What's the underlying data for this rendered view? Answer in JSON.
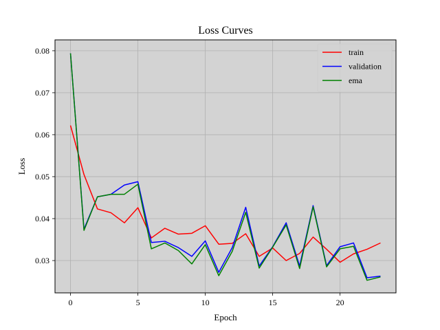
{
  "chart_data": {
    "type": "line",
    "title": "Loss Curves",
    "xlabel": "Epoch",
    "ylabel": "Loss",
    "xlim": [
      -1.15,
      24.15
    ],
    "ylim": [
      0.0223,
      0.0826
    ],
    "xticks": [
      0,
      5,
      10,
      15,
      20
    ],
    "yticks": [
      0.03,
      0.04,
      0.05,
      0.06,
      0.07,
      0.08
    ],
    "ytick_labels": [
      "0.03",
      "0.04",
      "0.05",
      "0.06",
      "0.07",
      "0.08"
    ],
    "grid": true,
    "plot_background": "#d3d3d3",
    "grid_color": "#b0b0b0",
    "legend_position": "top-right",
    "x": [
      0,
      1,
      2,
      3,
      4,
      5,
      6,
      7,
      8,
      9,
      10,
      11,
      12,
      13,
      14,
      15,
      16,
      17,
      18,
      19,
      20,
      21,
      22,
      23
    ],
    "series": [
      {
        "name": "train",
        "color": "#ff0000",
        "values": [
          0.0622,
          0.0505,
          0.0423,
          0.0414,
          0.039,
          0.0426,
          0.0354,
          0.0377,
          0.0363,
          0.0365,
          0.0383,
          0.0339,
          0.0341,
          0.0364,
          0.031,
          0.033,
          0.03,
          0.0317,
          0.0356,
          0.0327,
          0.0296,
          0.0316,
          0.0327,
          0.0342
        ]
      },
      {
        "name": "validation",
        "color": "#0000ff",
        "values": [
          0.0794,
          0.0375,
          0.0452,
          0.0458,
          0.048,
          0.0488,
          0.0343,
          0.0346,
          0.0331,
          0.031,
          0.0347,
          0.0272,
          0.0331,
          0.0427,
          0.0287,
          0.0333,
          0.039,
          0.0287,
          0.0431,
          0.0288,
          0.0333,
          0.0342,
          0.0259,
          0.0263
        ]
      },
      {
        "name": "ema",
        "color": "#008000",
        "values": [
          0.0794,
          0.0372,
          0.0452,
          0.0458,
          0.0458,
          0.0482,
          0.0328,
          0.0342,
          0.0324,
          0.0292,
          0.0338,
          0.0264,
          0.0322,
          0.0415,
          0.0282,
          0.0332,
          0.0385,
          0.0281,
          0.0428,
          0.0285,
          0.0328,
          0.0334,
          0.0253,
          0.0261
        ]
      }
    ]
  }
}
